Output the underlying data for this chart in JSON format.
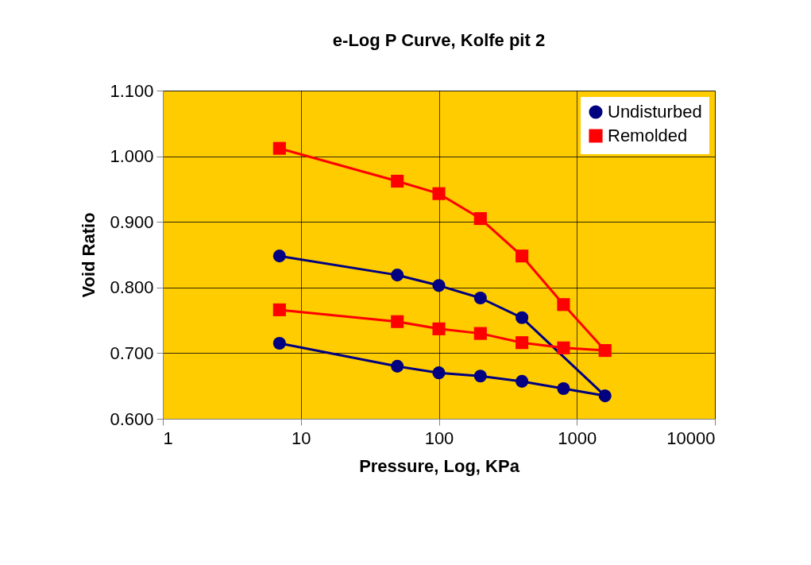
{
  "chart_data": {
    "type": "line",
    "title": "e-Log P Curve, Kolfe pit 2",
    "xlabel": "Pressure, Log, KPa",
    "ylabel": "Void Ratio",
    "log": "x",
    "xlim": [
      1,
      10000
    ],
    "xticks": [
      1,
      10,
      100,
      1000,
      10000
    ],
    "ylim": [
      0.6,
      1.1
    ],
    "yticks": [
      {
        "value": 0.6,
        "label": "0.600"
      },
      {
        "value": 0.7,
        "label": "0.700"
      },
      {
        "value": 0.8,
        "label": "0.800"
      },
      {
        "value": 0.9,
        "label": "0.900"
      },
      {
        "value": 1.0,
        "label": "1.000"
      },
      {
        "value": 1.1,
        "label": "1.100"
      }
    ],
    "grid": true,
    "legend": "top right",
    "line_style": "solid",
    "x": [
      7,
      50,
      100,
      200,
      400,
      800,
      1600,
      800,
      400,
      200,
      100,
      50,
      7
    ],
    "series": [
      {
        "name": "Undisturbed",
        "color": "#000080",
        "marker": "circle",
        "values": [
          0.848,
          0.819,
          0.803,
          0.784,
          0.754,
          null,
          0.635,
          0.646,
          0.657,
          0.665,
          0.67,
          0.68,
          0.715
        ]
      },
      {
        "name": "Remolded",
        "color": "#ff0000",
        "marker": "square",
        "values": [
          1.012,
          0.962,
          0.943,
          0.905,
          0.848,
          0.774,
          0.704,
          0.708,
          0.716,
          0.73,
          0.737,
          0.748,
          0.766
        ]
      }
    ]
  }
}
